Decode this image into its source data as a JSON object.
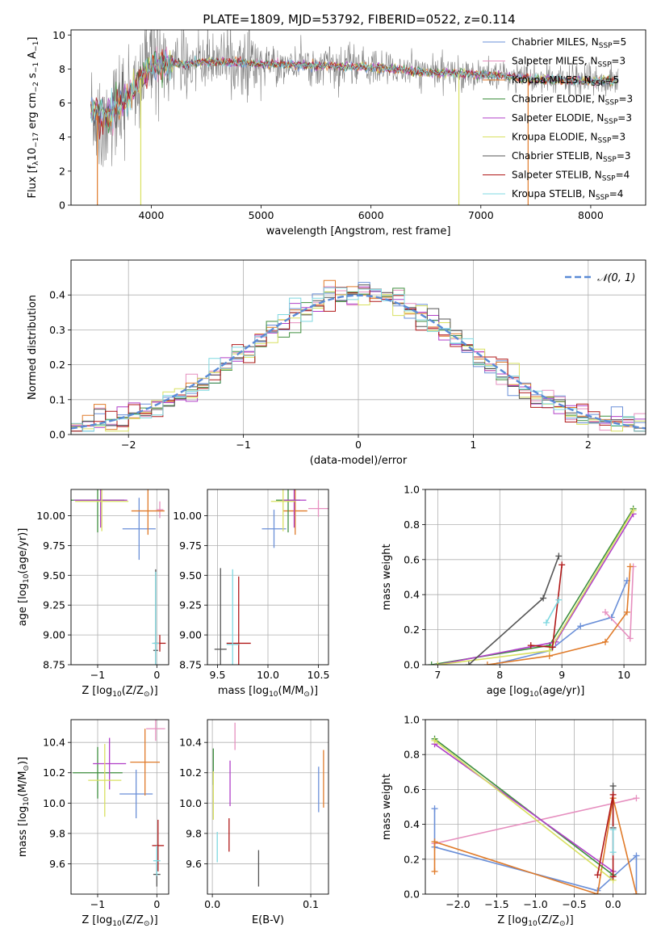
{
  "figure": {
    "title": "PLATE=1809, MJD=53792, FIBERID=0522, z=0.114"
  },
  "chart_data": [
    {
      "id": "spectrum",
      "type": "line",
      "title": "PLATE=1809, MJD=53792, FIBERID=0522, z=0.114",
      "xlabel": "wavelength [Angstrom, rest frame]",
      "ylabel_parts": [
        "Flux [f",
        "λ",
        "10",
        "−17",
        " erg cm",
        "−2",
        " s",
        "−1",
        " A",
        "−1",
        "]"
      ],
      "xlim": [
        3270,
        8500
      ],
      "ylim": [
        0,
        10.3
      ],
      "xticks": [
        4000,
        5000,
        6000,
        7000,
        8000
      ],
      "yticks": [
        0,
        2,
        4,
        6,
        8,
        10
      ],
      "grid": false,
      "legend_position": "right",
      "series": [
        {
          "base": "Chabrier MILES, N",
          "sub": "SSP",
          "tail": "=5",
          "color": "#6a8fd8"
        },
        {
          "base": "Salpeter MILES, N",
          "sub": "SSP",
          "tail": "=3",
          "color": "#e68fbf"
        },
        {
          "base": "Kroupa MILES, N",
          "sub": "SSP",
          "tail": "=5",
          "color": "#e07b2a"
        },
        {
          "base": "Chabrier ELODIE, N",
          "sub": "SSP",
          "tail": "=3",
          "color": "#3f8f3f"
        },
        {
          "base": "Salpeter ELODIE, N",
          "sub": "SSP",
          "tail": "=3",
          "color": "#b03fc8"
        },
        {
          "base": "Kroupa ELODIE, N",
          "sub": "SSP",
          "tail": "=3",
          "color": "#d8e060"
        },
        {
          "base": "Chabrier STELIB, N",
          "sub": "SSP",
          "tail": "=3",
          "color": "#555555"
        },
        {
          "base": "Salpeter STELIB, N",
          "sub": "SSP",
          "tail": "=4",
          "color": "#b01818"
        },
        {
          "base": "Kroupa STELIB, N",
          "sub": "SSP",
          "tail": "=4",
          "color": "#7fd8e0"
        }
      ],
      "model_continuum": {
        "x": [
          3450,
          3600,
          3800,
          4000,
          4300,
          4600,
          5000,
          5500,
          6000,
          6500,
          7000,
          7500,
          8000,
          8250
        ],
        "y": [
          5.6,
          5.2,
          6.5,
          8.3,
          8.3,
          8.4,
          8.3,
          8.2,
          8.1,
          7.8,
          7.7,
          7.4,
          7.3,
          7.3
        ]
      }
    },
    {
      "id": "residuals",
      "type": "line",
      "xlabel": "(data-model)/error",
      "ylabel": "Normed distribution",
      "xlim": [
        -2.5,
        2.5
      ],
      "ylim": [
        0,
        0.5
      ],
      "xticks": [
        -2,
        -1,
        0,
        1,
        2
      ],
      "yticks": [
        0,
        0.1,
        0.2,
        0.3,
        0.4
      ],
      "grid": true,
      "legend": "𝒩(0, 1)",
      "legend_position": "top-right",
      "gaussian": {
        "mu": 0,
        "sigma": 1,
        "color": "#5b8bd6"
      },
      "bin_width": 0.1
    },
    {
      "id": "age-vs-z",
      "type": "scatter",
      "xlabel_parts": [
        "Z [log",
        "10",
        "(Z/Z",
        "⊙",
        ")]"
      ],
      "ylabel_parts": [
        "age  [log",
        "10",
        "(age/yr)]"
      ],
      "xlim": [
        -1.45,
        0.2
      ],
      "ylim": [
        8.75,
        10.22
      ],
      "xticks": [
        -1,
        0
      ],
      "yticks": [
        8.75,
        9.0,
        9.25,
        9.5,
        9.75,
        10.0
      ],
      "grid": true,
      "crosses": [
        {
          "x": -0.3,
          "y": 9.89,
          "xerr": 0.28,
          "yerr": 0.26,
          "color": "#6a8fd8"
        },
        {
          "x": 0.05,
          "y": 10.05,
          "xerr": 0.06,
          "yerr": 0.07,
          "color": "#e68fbf"
        },
        {
          "x": -0.15,
          "y": 10.04,
          "xerr": 0.28,
          "yerr": 0.2,
          "color": "#e07b2a"
        },
        {
          "x": -1.0,
          "y": 10.13,
          "xerr": 0.45,
          "yerr": 0.27,
          "color": "#3f8f3f"
        },
        {
          "x": -0.95,
          "y": 10.13,
          "xerr": 0.45,
          "yerr": 0.23,
          "color": "#b03fc8"
        },
        {
          "x": -0.93,
          "y": 10.12,
          "xerr": 0.45,
          "yerr": 0.25,
          "color": "#d8e060"
        },
        {
          "x": -0.02,
          "y": 8.87,
          "xerr": 0.04,
          "yerr": 0.68,
          "color": "#555555"
        },
        {
          "x": 0.05,
          "y": 8.93,
          "xerr": 0.1,
          "yerr": 0.07,
          "color": "#b01818"
        },
        {
          "x": -0.02,
          "y": 8.93,
          "xerr": 0.06,
          "yerr": 0.6,
          "color": "#7fd8e0"
        }
      ]
    },
    {
      "id": "age-vs-mass",
      "type": "scatter",
      "xlabel_parts": [
        "mass [log",
        "10",
        "(M/M",
        "⊙",
        ")]"
      ],
      "ylabel": "",
      "xlim": [
        9.4,
        10.6
      ],
      "ylim": [
        8.75,
        10.22
      ],
      "xticks": [
        9.5,
        10.0,
        10.5
      ],
      "yticks": [
        8.75,
        9.0,
        9.25,
        9.5,
        9.75,
        10.0
      ],
      "grid": true,
      "crosses": [
        {
          "x": 10.06,
          "y": 9.89,
          "xerr": 0.12,
          "yerr": 0.16,
          "color": "#6a8fd8"
        },
        {
          "x": 10.5,
          "y": 10.06,
          "xerr": 0.1,
          "yerr": 0.07,
          "color": "#e68fbf"
        },
        {
          "x": 10.27,
          "y": 10.04,
          "xerr": 0.12,
          "yerr": 0.2,
          "color": "#e07b2a"
        },
        {
          "x": 10.2,
          "y": 10.13,
          "xerr": 0.12,
          "yerr": 0.27,
          "color": "#3f8f3f"
        },
        {
          "x": 10.26,
          "y": 10.13,
          "xerr": 0.12,
          "yerr": 0.23,
          "color": "#b03fc8"
        },
        {
          "x": 10.15,
          "y": 10.12,
          "xerr": 0.12,
          "yerr": 0.25,
          "color": "#d8e060"
        },
        {
          "x": 9.53,
          "y": 8.88,
          "xerr": 0.06,
          "yerr": 0.68,
          "color": "#555555"
        },
        {
          "x": 9.71,
          "y": 8.93,
          "xerr": 0.12,
          "yerr": 0.56,
          "color": "#b01818"
        },
        {
          "x": 9.65,
          "y": 8.92,
          "xerr": 0.06,
          "yerr": 0.63,
          "color": "#7fd8e0"
        }
      ]
    },
    {
      "id": "mass-weight-vs-age",
      "type": "line",
      "xlabel_parts": [
        "age  [log",
        "10",
        "(age/yr)]"
      ],
      "ylabel": "mass weight",
      "xlim": [
        6.8,
        10.35
      ],
      "ylim": [
        0,
        1.0
      ],
      "xticks": [
        7,
        8,
        9,
        10
      ],
      "yticks": [
        0,
        0.2,
        0.4,
        0.6,
        0.8,
        1.0
      ],
      "grid": true,
      "series": [
        {
          "color": "#6a8fd8",
          "x": [
            8.0,
            8.8,
            9.3,
            9.8,
            10.05
          ],
          "y": [
            0.01,
            0.08,
            0.22,
            0.27,
            0.48
          ]
        },
        {
          "color": "#e68fbf",
          "x": [
            9.7,
            10.1,
            10.15
          ],
          "y": [
            0.3,
            0.15,
            0.56
          ]
        },
        {
          "color": "#e07b2a",
          "x": [
            7.8,
            8.8,
            9.7,
            10.05,
            10.1
          ],
          "y": [
            0.0,
            0.05,
            0.13,
            0.3,
            0.56
          ]
        },
        {
          "color": "#3f8f3f",
          "x": [
            6.9,
            8.8,
            10.15
          ],
          "y": [
            0.0,
            0.11,
            0.89
          ]
        },
        {
          "color": "#b03fc8",
          "x": [
            7.0,
            8.9,
            10.15
          ],
          "y": [
            0.0,
            0.13,
            0.86
          ]
        },
        {
          "color": "#d8e060",
          "x": [
            7.0,
            8.8,
            10.15
          ],
          "y": [
            0.0,
            0.08,
            0.88
          ]
        },
        {
          "color": "#555555",
          "x": [
            7.5,
            8.7,
            8.95
          ],
          "y": [
            0.0,
            0.38,
            0.62
          ]
        },
        {
          "color": "#b01818",
          "x": [
            8.5,
            8.85,
            9.0
          ],
          "y": [
            0.11,
            0.1,
            0.57
          ]
        },
        {
          "color": "#7fd8e0",
          "x": [
            8.75,
            8.95
          ],
          "y": [
            0.24,
            0.37
          ]
        }
      ]
    },
    {
      "id": "mass-vs-z",
      "type": "scatter",
      "xlabel_parts": [
        "Z [log",
        "10",
        "(Z/Z",
        "⊙",
        ")]"
      ],
      "ylabel_parts": [
        "mass [log",
        "10",
        "(M/M",
        "⊙",
        ")]"
      ],
      "xlim": [
        -1.45,
        0.2
      ],
      "ylim": [
        9.4,
        10.55
      ],
      "xticks": [
        -1,
        0
      ],
      "yticks": [
        9.6,
        9.8,
        10.0,
        10.2,
        10.4
      ],
      "grid": true,
      "crosses": [
        {
          "x": -0.35,
          "y": 10.06,
          "xerr": 0.28,
          "yerr": 0.16,
          "color": "#6a8fd8"
        },
        {
          "x": -0.02,
          "y": 10.49,
          "xerr": 0.16,
          "yerr": 0.08,
          "color": "#e68fbf"
        },
        {
          "x": -0.2,
          "y": 10.27,
          "xerr": 0.25,
          "yerr": 0.22,
          "color": "#e07b2a"
        },
        {
          "x": -1.0,
          "y": 10.2,
          "xerr": 0.42,
          "yerr": 0.17,
          "color": "#3f8f3f"
        },
        {
          "x": -0.8,
          "y": 10.26,
          "xerr": 0.28,
          "yerr": 0.17,
          "color": "#b03fc8"
        },
        {
          "x": -0.88,
          "y": 10.15,
          "xerr": 0.28,
          "yerr": 0.24,
          "color": "#d8e060"
        },
        {
          "x": 0.0,
          "y": 9.53,
          "xerr": 0.06,
          "yerr": 0.08,
          "color": "#555555"
        },
        {
          "x": 0.02,
          "y": 9.72,
          "xerr": 0.1,
          "yerr": 0.17,
          "color": "#b01818"
        },
        {
          "x": 0.0,
          "y": 9.62,
          "xerr": 0.06,
          "yerr": 0.1,
          "color": "#7fd8e0"
        }
      ]
    },
    {
      "id": "mass-vs-ebv",
      "type": "scatter",
      "xlabel": "E(B-V)",
      "ylabel": "",
      "xlim": [
        -0.005,
        0.118
      ],
      "ylim": [
        9.4,
        10.55
      ],
      "xticks": [
        0.0,
        0.1
      ],
      "yticks": [
        9.6,
        9.8,
        10.0,
        10.2,
        10.4
      ],
      "grid": true,
      "crosses": [
        {
          "x": 0.108,
          "y": 10.09,
          "xerr": 0.0,
          "yerr": 0.15,
          "color": "#6a8fd8"
        },
        {
          "x": 0.023,
          "y": 10.44,
          "xerr": 0.0,
          "yerr": 0.09,
          "color": "#e68fbf"
        },
        {
          "x": 0.113,
          "y": 10.16,
          "xerr": 0.0,
          "yerr": 0.19,
          "color": "#e07b2a"
        },
        {
          "x": 0.001,
          "y": 10.24,
          "xerr": 0.0,
          "yerr": 0.12,
          "color": "#3f8f3f"
        },
        {
          "x": 0.018,
          "y": 10.13,
          "xerr": 0.0,
          "yerr": 0.15,
          "color": "#b03fc8"
        },
        {
          "x": 0.001,
          "y": 10.05,
          "xerr": 0.0,
          "yerr": 0.16,
          "color": "#d8e060"
        },
        {
          "x": 0.047,
          "y": 9.57,
          "xerr": 0.0,
          "yerr": 0.12,
          "color": "#555555"
        },
        {
          "x": 0.017,
          "y": 9.79,
          "xerr": 0.0,
          "yerr": 0.11,
          "color": "#b01818"
        },
        {
          "x": 0.005,
          "y": 9.71,
          "xerr": 0.0,
          "yerr": 0.1,
          "color": "#7fd8e0"
        }
      ]
    },
    {
      "id": "mass-weight-vs-z",
      "type": "line",
      "xlabel_parts": [
        "Z [log",
        "10",
        "(Z/Z",
        "⊙",
        ")]"
      ],
      "ylabel": "mass weight",
      "xlim": [
        -2.42,
        0.42
      ],
      "ylim": [
        0,
        1.0
      ],
      "xticks": [
        -2.0,
        -1.5,
        -1.0,
        -0.5,
        0.0
      ],
      "yticks": [
        0,
        0.2,
        0.4,
        0.6,
        0.8,
        1.0
      ],
      "grid": true,
      "series": [
        {
          "color": "#6a8fd8",
          "x": [
            -2.3,
            -2.3,
            -0.2,
            0.3,
            0.3
          ],
          "y": [
            0.49,
            0.27,
            0.02,
            0.22,
            0.0
          ]
        },
        {
          "color": "#e68fbf",
          "x": [
            -2.3,
            0.3
          ],
          "y": [
            0.29,
            0.55
          ]
        },
        {
          "color": "#e07b2a",
          "x": [
            -2.3,
            -2.3,
            -0.2,
            0.0,
            0.3
          ],
          "y": [
            0.13,
            0.3,
            0.0,
            0.55,
            0.0
          ]
        },
        {
          "color": "#3f8f3f",
          "x": [
            -2.3,
            0.0
          ],
          "y": [
            0.89,
            0.11
          ]
        },
        {
          "color": "#b03fc8",
          "x": [
            -2.3,
            0.0
          ],
          "y": [
            0.86,
            0.13
          ]
        },
        {
          "color": "#d8e060",
          "x": [
            -2.3,
            0.0
          ],
          "y": [
            0.88,
            0.08
          ]
        },
        {
          "color": "#555555",
          "x": [
            0.0,
            0.0
          ],
          "y": [
            0.38,
            0.62
          ]
        },
        {
          "color": "#b01818",
          "x": [
            -0.2,
            0.0,
            0.0
          ],
          "y": [
            0.11,
            0.57,
            0.1
          ]
        },
        {
          "color": "#7fd8e0",
          "x": [
            0.0,
            0.0
          ],
          "y": [
            0.24,
            0.37
          ]
        }
      ]
    }
  ]
}
